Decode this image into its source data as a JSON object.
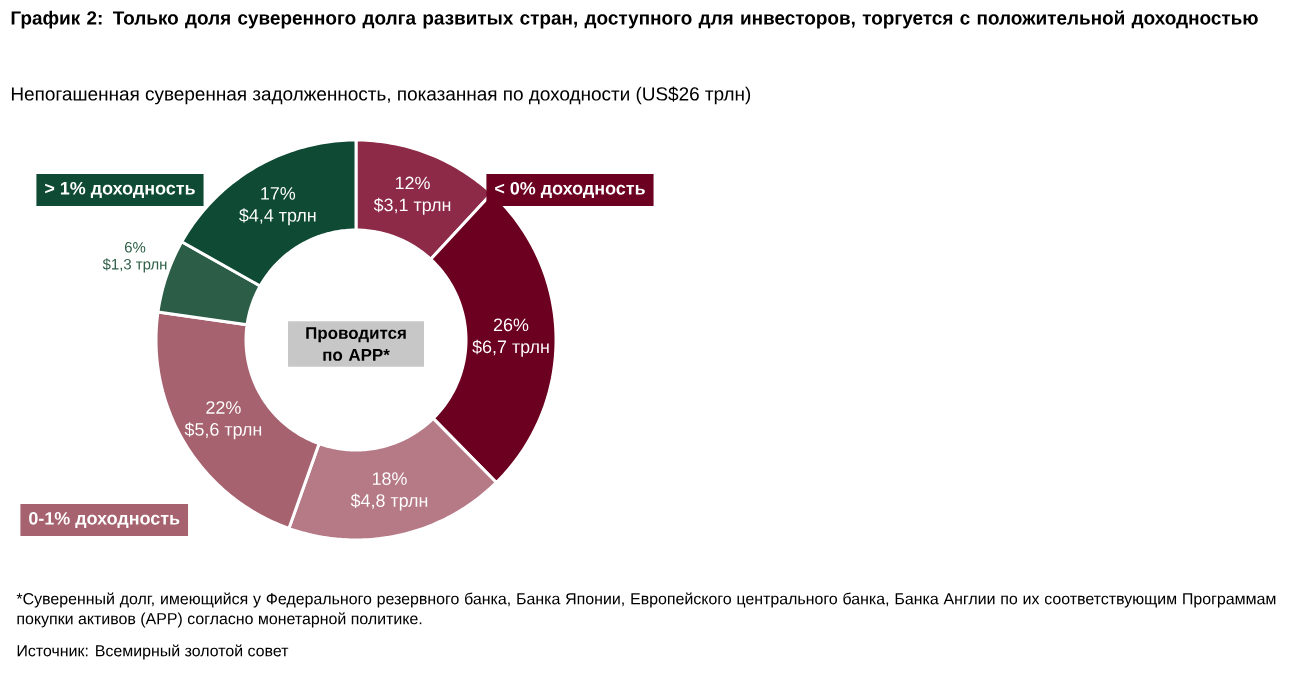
{
  "chart_data": {
    "type": "donut",
    "title": "График 2: Только доля суверенного долга развитых стран, доступного для инвесторов, торгуется с положительной доходностью",
    "subtitle": "Непогашенная суверенная задолженность, показанная по доходности (US$26 трлн)",
    "categories": [
      "$3,1 трлн",
      "$6,7 трлн",
      "$4,8 трлн",
      "$5,6 трлн",
      "$1,3 трлн",
      "$4,4 трлн"
    ],
    "values": [
      12,
      26,
      18,
      22,
      6,
      17
    ],
    "value_labels": [
      "12%",
      "26%",
      "18%",
      "22%",
      "6%",
      "17%"
    ],
    "colors": [
      "#8c2a47",
      "#6b0020",
      "#b57a86",
      "#a6636f",
      "#2c5e47",
      "#0f4a35"
    ],
    "annotations": [
      "< 0% доходность",
      "0-1% доходность",
      "> 1% доходность",
      "Проводится по APP*",
      "*Суверенный долг, имеющийся у Федерального резервного банка, Банка Японии, Европейского центрального банка, Банка Англии по их соответствующим Программам покупки активов (APP) согласно монетарной политике.",
      "Источник: Всемирный золотой совет"
    ]
  }
}
